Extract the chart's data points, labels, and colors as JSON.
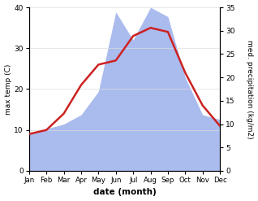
{
  "months": [
    "Jan",
    "Feb",
    "Mar",
    "Apr",
    "May",
    "Jun",
    "Jul",
    "Aug",
    "Sep",
    "Oct",
    "Nov",
    "Dec"
  ],
  "temperature": [
    9,
    10,
    14,
    21,
    26,
    27,
    33,
    35,
    34,
    24,
    16,
    11
  ],
  "precipitation": [
    8,
    9,
    10,
    12,
    17,
    34,
    28,
    35,
    33,
    20,
    12,
    11
  ],
  "temp_color": "#cc2222",
  "precip_color": "#aabbee",
  "temp_ylim": [
    0,
    40
  ],
  "precip_ylim": [
    0,
    35
  ],
  "temp_yticks": [
    0,
    10,
    20,
    30,
    40
  ],
  "precip_yticks": [
    0,
    5,
    10,
    15,
    20,
    25,
    30,
    35
  ],
  "xlabel": "date (month)",
  "ylabel_left": "max temp (C)",
  "ylabel_right": "med. precipitation (kg/m2)",
  "figsize": [
    3.18,
    2.47
  ],
  "dpi": 100
}
